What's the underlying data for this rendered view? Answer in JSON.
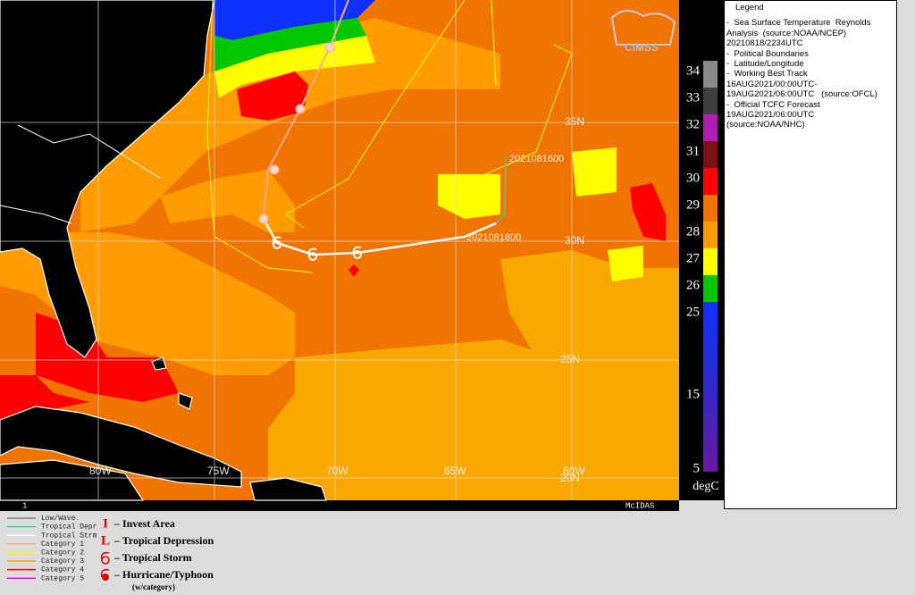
{
  "map": {
    "logo": "CIMSS",
    "latitude_labels": [
      "35N",
      "30N",
      "25N",
      "20N"
    ],
    "longitude_labels": [
      "80W",
      "75W",
      "70W",
      "65W",
      "60W"
    ],
    "track_labels": [
      "2021081600",
      "2021081800"
    ],
    "frame_number": "1",
    "software": "McIDAS"
  },
  "color_scale": {
    "unit": "degC",
    "levels": [
      {
        "label": "34",
        "color": "#8a8a8a"
      },
      {
        "label": "33",
        "color": "#404040"
      },
      {
        "label": "32",
        "color": "#b21cb2"
      },
      {
        "label": "31",
        "color": "#7a1414"
      },
      {
        "label": "30",
        "color": "#ff0000"
      },
      {
        "label": "29",
        "color": "#f27400"
      },
      {
        "label": "28",
        "color": "#ff9c00"
      },
      {
        "label": "27",
        "color": "#ffff00"
      },
      {
        "label": "26",
        "color": "#00c800"
      },
      {
        "label": "25",
        "color": "#1030ff"
      }
    ],
    "lower_labels": [
      "15",
      "5"
    ]
  },
  "legend": {
    "title": "Legend",
    "lines": [
      "-  Sea Surface Temperature  Reynolds",
      "Analysis  (source:NOAA/NCEP)",
      "20210818/2234UTC",
      "",
      "-  Political Boundaries",
      "-  Latitude/Longitude",
      "-  Working Best Track",
      "16AUG2021/00:00UTC-",
      "19AUG2021/06:00UTC   (source:OFCL)",
      "-  Official TCFC Forecast",
      "19AUG2021/06:00UTC",
      "(source:NOAA/NHC)"
    ]
  },
  "track_legend": {
    "lines": [
      {
        "name": "Low/Wave",
        "color": "#808080"
      },
      {
        "name": "Tropical Depr",
        "color": "#3cd2a0"
      },
      {
        "name": "Tropical Strm",
        "color": "#ffffff"
      },
      {
        "name": "Category 1",
        "color": "#ffa890"
      },
      {
        "name": "Category 2",
        "color": "#ffff00"
      },
      {
        "name": "Category 3",
        "color": "#ff9900"
      },
      {
        "name": "Category 4",
        "color": "#ff0000"
      },
      {
        "name": "Category 5",
        "color": "#ff00ff"
      }
    ],
    "symbols": [
      {
        "symbol": "I",
        "text": "– Invest Area"
      },
      {
        "symbol": "L",
        "text": "– Tropical Depression"
      },
      {
        "symbol": "",
        "text": "– Tropical Storm"
      },
      {
        "symbol": "",
        "text": "– Hurricane/Typhoon"
      }
    ],
    "note": "(w/category)"
  }
}
